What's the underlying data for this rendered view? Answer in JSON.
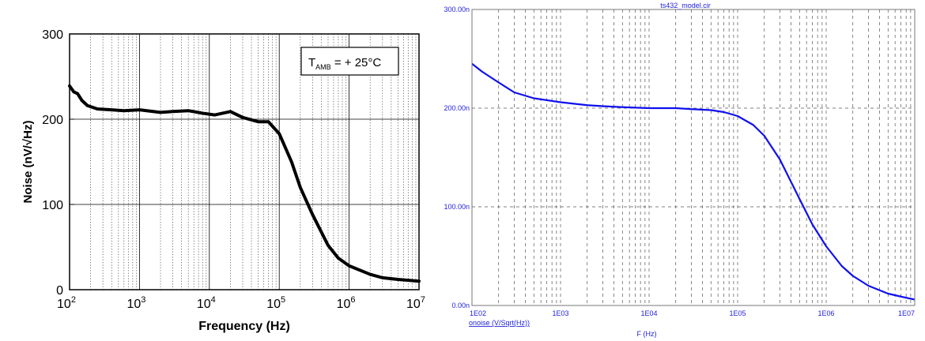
{
  "chart_data": [
    {
      "type": "line",
      "title": "",
      "xlabel": "Frequency (Hz)",
      "ylabel": "Noise (nV/√Hz)",
      "x_scale": "log",
      "xlim": [
        100,
        10000000
      ],
      "ylim": [
        0,
        300
      ],
      "x_ticks": [
        {
          "value": 100,
          "base": "10",
          "exp": "2"
        },
        {
          "value": 1000,
          "base": "10",
          "exp": "3"
        },
        {
          "value": 10000,
          "base": "10",
          "exp": "4"
        },
        {
          "value": 100000,
          "base": "10",
          "exp": "5"
        },
        {
          "value": 1000000,
          "base": "10",
          "exp": "6"
        },
        {
          "value": 10000000,
          "base": "10",
          "exp": "7"
        }
      ],
      "y_ticks": [
        {
          "value": 0,
          "label": "0"
        },
        {
          "value": 100,
          "label": "100"
        },
        {
          "value": 200,
          "label": "200"
        },
        {
          "value": 300,
          "label": "300"
        }
      ],
      "annotation": {
        "main": "T",
        "sub": "AMB",
        "rest": " = + 25°C"
      },
      "grid": {
        "major": "solid",
        "minor_x": "dotted"
      },
      "line_color": "#000000",
      "series": [
        {
          "x": [
            100,
            115,
            130,
            150,
            180,
            250,
            400,
            600,
            1000,
            2000,
            3000,
            5000,
            8000,
            12000,
            20000,
            30000,
            50000,
            70000,
            100000,
            150000,
            200000,
            300000,
            500000,
            700000,
            1000000,
            2000000,
            3000000,
            5000000,
            10000000
          ],
          "values": [
            239,
            232,
            230,
            222,
            216,
            212,
            211,
            210,
            211,
            208,
            209,
            210,
            207,
            205,
            209,
            202,
            197,
            197,
            183,
            150,
            120,
            88,
            52,
            37,
            28,
            18,
            14,
            12,
            10
          ]
        }
      ]
    },
    {
      "type": "line",
      "title": "ts432_model.cir",
      "xlabel": "F (Hz)",
      "ylabel": "",
      "legend_label": "onoise (V/Sqrt(Hz))",
      "x_scale": "log",
      "xlim": [
        100,
        10000000
      ],
      "ylim": [
        0,
        300
      ],
      "x_ticks": [
        {
          "value": 100,
          "label": "1E02"
        },
        {
          "value": 1000,
          "label": "1E03"
        },
        {
          "value": 10000,
          "label": "1E04"
        },
        {
          "value": 100000,
          "label": "1E05"
        },
        {
          "value": 1000000,
          "label": "1E06"
        },
        {
          "value": 10000000,
          "label": "1E07"
        }
      ],
      "y_ticks": [
        {
          "value": 0,
          "label": "0.00n"
        },
        {
          "value": 100,
          "label": "100.00n"
        },
        {
          "value": 200,
          "label": "200.00n"
        },
        {
          "value": 300,
          "label": "300.00n"
        }
      ],
      "grid": {
        "major": "dashed",
        "minor_x": "dashed"
      },
      "line_color": "#1010ee",
      "label_color": "#2222dd",
      "series": [
        {
          "x": [
            100,
            130,
            200,
            300,
            500,
            1000,
            2000,
            3000,
            5000,
            10000,
            20000,
            30000,
            50000,
            70000,
            100000,
            150000,
            200000,
            300000,
            500000,
            700000,
            1000000,
            1500000,
            2000000,
            3000000,
            5000000,
            7000000,
            10000000
          ],
          "values": [
            245,
            237,
            226,
            216,
            210,
            206,
            203,
            202,
            201,
            200,
            200,
            199,
            198,
            196,
            192,
            183,
            172,
            148,
            108,
            82,
            60,
            40,
            30,
            20,
            12,
            9,
            6
          ]
        }
      ]
    }
  ]
}
